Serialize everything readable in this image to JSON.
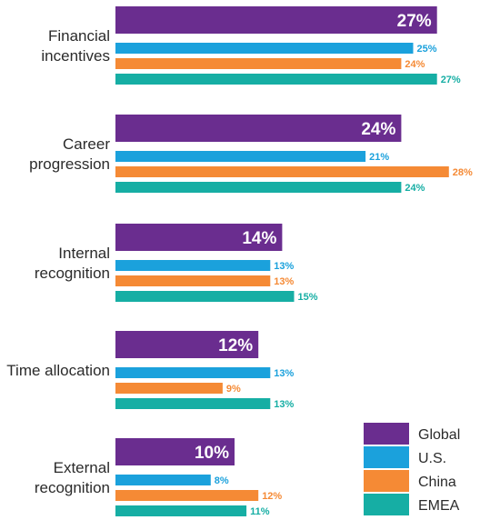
{
  "chart_data": {
    "type": "bar",
    "orientation": "horizontal",
    "categories": [
      [
        "Financial",
        "incentives"
      ],
      [
        "Career",
        "progression"
      ],
      [
        "Internal",
        "recognition"
      ],
      [
        "Time allocation"
      ],
      [
        "External",
        "recognition"
      ]
    ],
    "series": [
      {
        "name": "Global",
        "color": "#6a2d8f",
        "values": [
          27,
          24,
          14,
          12,
          10
        ],
        "labels": [
          "27%",
          "24%",
          "14%",
          "12%",
          "10%"
        ]
      },
      {
        "name": "U.S.",
        "color": "#1ba1dc",
        "values": [
          25,
          21,
          13,
          13,
          8
        ],
        "labels": [
          "25%",
          "21%",
          "13%",
          "13%",
          "8%"
        ]
      },
      {
        "name": "China",
        "color": "#f58a35",
        "values": [
          24,
          28,
          13,
          9,
          12
        ],
        "labels": [
          "24%",
          "28%",
          "13%",
          "9%",
          "12%"
        ]
      },
      {
        "name": "EMEA",
        "color": "#16aea4",
        "values": [
          27,
          24,
          15,
          13,
          11
        ],
        "labels": [
          "27%",
          "24%",
          "15%",
          "13%",
          "11%"
        ]
      }
    ],
    "xlim": [
      0,
      28
    ],
    "legend_position": "bottom-right"
  }
}
